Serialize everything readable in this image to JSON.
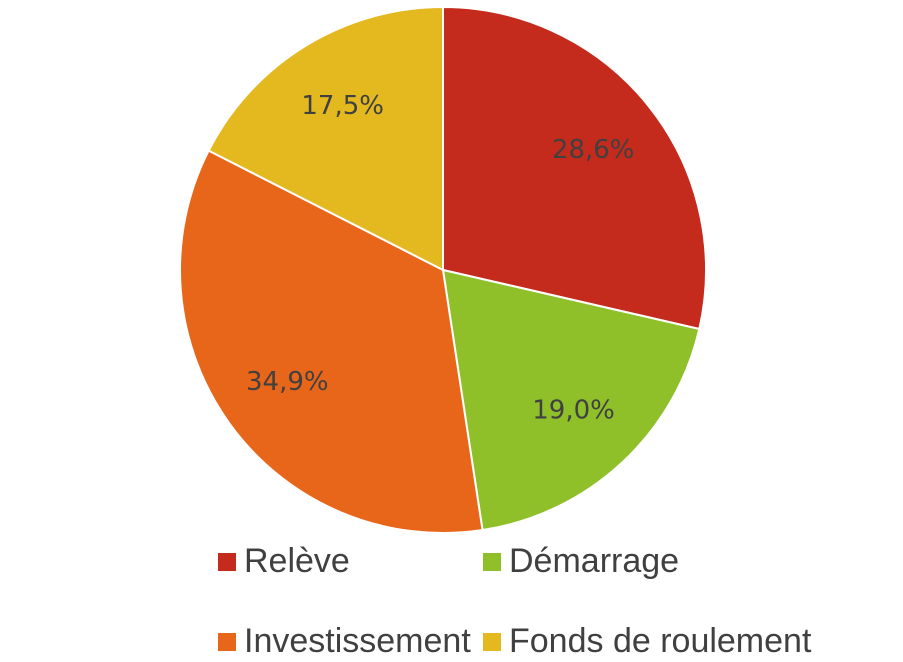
{
  "chart_data": {
    "type": "pie",
    "categories": [
      "Relève",
      "Démarrage",
      "Investissement",
      "Fonds de roulement"
    ],
    "values": [
      28.6,
      19.0,
      34.9,
      17.5
    ],
    "value_labels": [
      "28,6%",
      "19,0%",
      "34,9%",
      "17,5%"
    ],
    "colors": [
      "#c42b1c",
      "#8fc02a",
      "#e8661a",
      "#e3b91f"
    ]
  }
}
